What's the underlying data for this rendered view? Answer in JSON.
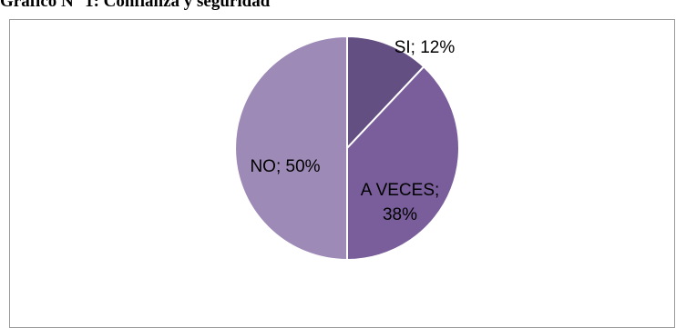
{
  "caption": "Gráfico N° 1: Confianza y seguridad",
  "chart_data": {
    "type": "pie",
    "title": "",
    "slices": [
      {
        "category": "SI",
        "value": 12,
        "label_line1": "SI; 12%",
        "label_line2": "",
        "color": "#634f82"
      },
      {
        "category": "A VECES",
        "value": 38,
        "label_line1": "A VECES;",
        "label_line2": "38%",
        "color": "#7a5e9b"
      },
      {
        "category": "NO",
        "value": 50,
        "label_line1": "NO; 50%",
        "label_line2": "",
        "color": "#9d8ab6"
      }
    ],
    "legend": "none"
  }
}
